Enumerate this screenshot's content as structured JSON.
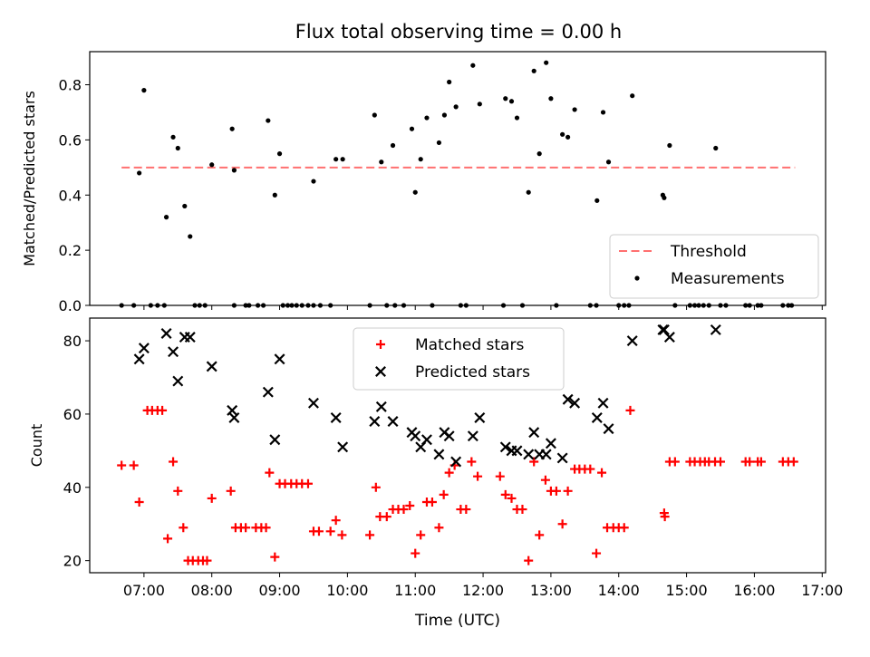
{
  "figure": {
    "title": "Flux total observing time = 0.00 h"
  },
  "chart_data": [
    {
      "type": "scatter",
      "panel": "top",
      "title": "Flux total observing time = 0.00 h",
      "xlabel": "",
      "ylabel": "Matched/Predicted stars",
      "x_unit": "hours UTC",
      "xlim": [
        6.2,
        17.05
      ],
      "ylim": [
        0.0,
        0.92
      ],
      "yticks": [
        0.0,
        0.2,
        0.4,
        0.6,
        0.8
      ],
      "ytick_labels": [
        "0.0",
        "0.2",
        "0.4",
        "0.6",
        "0.8"
      ],
      "grid": false,
      "legend": {
        "position": "lower-right",
        "entries": [
          "Threshold",
          "Measurements"
        ]
      },
      "threshold": {
        "name": "Threshold",
        "y": 0.5,
        "x_range": [
          6.67,
          16.6
        ],
        "color": "#ff7070",
        "style": "dashed"
      },
      "series": [
        {
          "name": "Measurements",
          "color": "#000000",
          "marker": "dot",
          "points": [
            [
              6.93,
              0.48
            ],
            [
              7.0,
              0.78
            ],
            [
              7.33,
              0.32
            ],
            [
              7.43,
              0.61
            ],
            [
              7.5,
              0.57
            ],
            [
              7.6,
              0.36
            ],
            [
              7.68,
              0.25
            ],
            [
              8.0,
              0.51
            ],
            [
              8.3,
              0.64
            ],
            [
              8.33,
              0.49
            ],
            [
              8.83,
              0.67
            ],
            [
              8.93,
              0.4
            ],
            [
              9.0,
              0.55
            ],
            [
              9.5,
              0.45
            ],
            [
              9.83,
              0.53
            ],
            [
              9.93,
              0.53
            ],
            [
              10.4,
              0.69
            ],
            [
              10.5,
              0.52
            ],
            [
              10.67,
              0.58
            ],
            [
              10.95,
              0.64
            ],
            [
              11.0,
              0.41
            ],
            [
              11.08,
              0.53
            ],
            [
              11.17,
              0.68
            ],
            [
              11.35,
              0.59
            ],
            [
              11.43,
              0.69
            ],
            [
              11.5,
              0.81
            ],
            [
              11.6,
              0.72
            ],
            [
              11.85,
              0.87
            ],
            [
              11.95,
              0.73
            ],
            [
              12.33,
              0.75
            ],
            [
              12.42,
              0.74
            ],
            [
              12.5,
              0.68
            ],
            [
              12.67,
              0.41
            ],
            [
              12.75,
              0.85
            ],
            [
              12.83,
              0.55
            ],
            [
              12.93,
              0.88
            ],
            [
              13.0,
              0.75
            ],
            [
              13.17,
              0.62
            ],
            [
              13.25,
              0.61
            ],
            [
              13.35,
              0.71
            ],
            [
              13.68,
              0.38
            ],
            [
              13.77,
              0.7
            ],
            [
              13.85,
              0.52
            ],
            [
              14.2,
              0.76
            ],
            [
              14.65,
              0.4
            ],
            [
              14.67,
              0.39
            ],
            [
              14.75,
              0.58
            ],
            [
              15.43,
              0.57
            ],
            [
              6.67,
              0.0
            ],
            [
              6.85,
              0.0
            ],
            [
              7.1,
              0.0
            ],
            [
              7.2,
              0.0
            ],
            [
              7.3,
              0.0
            ],
            [
              7.75,
              0.0
            ],
            [
              7.82,
              0.0
            ],
            [
              7.9,
              0.0
            ],
            [
              8.33,
              0.0
            ],
            [
              8.5,
              0.0
            ],
            [
              8.55,
              0.0
            ],
            [
              8.68,
              0.0
            ],
            [
              8.76,
              0.0
            ],
            [
              9.05,
              0.0
            ],
            [
              9.12,
              0.0
            ],
            [
              9.18,
              0.0
            ],
            [
              9.25,
              0.0
            ],
            [
              9.33,
              0.0
            ],
            [
              9.42,
              0.0
            ],
            [
              9.5,
              0.0
            ],
            [
              9.6,
              0.0
            ],
            [
              9.75,
              0.0
            ],
            [
              10.33,
              0.0
            ],
            [
              10.58,
              0.0
            ],
            [
              10.7,
              0.0
            ],
            [
              10.83,
              0.0
            ],
            [
              11.25,
              0.0
            ],
            [
              11.67,
              0.0
            ],
            [
              11.75,
              0.0
            ],
            [
              12.3,
              0.0
            ],
            [
              12.58,
              0.0
            ],
            [
              13.08,
              0.0
            ],
            [
              13.58,
              0.0
            ],
            [
              13.67,
              0.0
            ],
            [
              14.0,
              0.0
            ],
            [
              14.08,
              0.0
            ],
            [
              14.15,
              0.0
            ],
            [
              14.83,
              0.0
            ],
            [
              15.05,
              0.0
            ],
            [
              15.12,
              0.0
            ],
            [
              15.18,
              0.0
            ],
            [
              15.25,
              0.0
            ],
            [
              15.33,
              0.0
            ],
            [
              15.5,
              0.0
            ],
            [
              15.58,
              0.0
            ],
            [
              15.87,
              0.0
            ],
            [
              15.93,
              0.0
            ],
            [
              16.05,
              0.0
            ],
            [
              16.1,
              0.0
            ],
            [
              16.42,
              0.0
            ],
            [
              16.5,
              0.0
            ],
            [
              16.55,
              0.0
            ]
          ]
        }
      ]
    },
    {
      "type": "scatter",
      "panel": "bottom",
      "title": "",
      "xlabel": "Time (UTC)",
      "ylabel": "Count",
      "x_unit": "hours UTC",
      "xlim": [
        6.2,
        17.05
      ],
      "ylim": [
        16.7,
        86.2
      ],
      "xticks": [
        7,
        8,
        9,
        10,
        11,
        12,
        13,
        14,
        15,
        16,
        17
      ],
      "xtick_labels": [
        "07:00",
        "08:00",
        "09:00",
        "10:00",
        "11:00",
        "12:00",
        "13:00",
        "14:00",
        "15:00",
        "16:00",
        "17:00"
      ],
      "yticks": [
        20,
        40,
        60,
        80
      ],
      "ytick_labels": [
        "20",
        "40",
        "60",
        "80"
      ],
      "grid": false,
      "legend": {
        "position": "top-center",
        "entries": [
          "Matched stars",
          "Predicted stars"
        ]
      },
      "series": [
        {
          "name": "Matched stars",
          "color": "#ff0000",
          "marker": "plus",
          "points": [
            [
              6.67,
              46
            ],
            [
              6.85,
              46
            ],
            [
              6.93,
              36
            ],
            [
              7.05,
              61
            ],
            [
              7.12,
              61
            ],
            [
              7.2,
              61
            ],
            [
              7.27,
              61
            ],
            [
              7.35,
              26
            ],
            [
              7.43,
              47
            ],
            [
              7.5,
              39
            ],
            [
              7.58,
              29
            ],
            [
              7.65,
              20
            ],
            [
              7.72,
              20
            ],
            [
              7.8,
              20
            ],
            [
              7.87,
              20
            ],
            [
              7.93,
              20
            ],
            [
              8.0,
              37
            ],
            [
              8.28,
              39
            ],
            [
              8.35,
              29
            ],
            [
              8.43,
              29
            ],
            [
              8.5,
              29
            ],
            [
              8.65,
              29
            ],
            [
              8.73,
              29
            ],
            [
              8.8,
              29
            ],
            [
              8.85,
              44
            ],
            [
              8.93,
              21
            ],
            [
              9.0,
              41
            ],
            [
              9.08,
              41
            ],
            [
              9.17,
              41
            ],
            [
              9.25,
              41
            ],
            [
              9.33,
              41
            ],
            [
              9.42,
              41
            ],
            [
              9.5,
              28
            ],
            [
              9.58,
              28
            ],
            [
              9.75,
              28
            ],
            [
              9.83,
              31
            ],
            [
              9.92,
              27
            ],
            [
              10.33,
              27
            ],
            [
              10.42,
              40
            ],
            [
              10.48,
              32
            ],
            [
              10.58,
              32
            ],
            [
              10.67,
              34
            ],
            [
              10.75,
              34
            ],
            [
              10.83,
              34
            ],
            [
              10.92,
              35
            ],
            [
              11.0,
              22
            ],
            [
              11.08,
              27
            ],
            [
              11.17,
              36
            ],
            [
              11.25,
              36
            ],
            [
              11.35,
              29
            ],
            [
              11.42,
              38
            ],
            [
              11.5,
              44
            ],
            [
              11.58,
              46
            ],
            [
              11.67,
              34
            ],
            [
              11.75,
              34
            ],
            [
              11.83,
              47
            ],
            [
              11.92,
              43
            ],
            [
              12.25,
              43
            ],
            [
              12.33,
              38
            ],
            [
              12.42,
              37
            ],
            [
              12.5,
              34
            ],
            [
              12.58,
              34
            ],
            [
              12.67,
              20
            ],
            [
              12.75,
              47
            ],
            [
              12.83,
              27
            ],
            [
              12.92,
              42
            ],
            [
              13.0,
              39
            ],
            [
              13.08,
              39
            ],
            [
              13.17,
              30
            ],
            [
              13.25,
              39
            ],
            [
              13.35,
              45
            ],
            [
              13.42,
              45
            ],
            [
              13.5,
              45
            ],
            [
              13.58,
              45
            ],
            [
              13.67,
              22
            ],
            [
              13.75,
              44
            ],
            [
              13.83,
              29
            ],
            [
              13.92,
              29
            ],
            [
              14.0,
              29
            ],
            [
              14.08,
              29
            ],
            [
              14.17,
              61
            ],
            [
              14.67,
              33
            ],
            [
              14.68,
              32
            ],
            [
              14.75,
              47
            ],
            [
              14.83,
              47
            ],
            [
              15.05,
              47
            ],
            [
              15.12,
              47
            ],
            [
              15.2,
              47
            ],
            [
              15.27,
              47
            ],
            [
              15.33,
              47
            ],
            [
              15.42,
              47
            ],
            [
              15.5,
              47
            ],
            [
              15.87,
              47
            ],
            [
              15.93,
              47
            ],
            [
              16.05,
              47
            ],
            [
              16.1,
              47
            ],
            [
              16.42,
              47
            ],
            [
              16.5,
              47
            ],
            [
              16.58,
              47
            ]
          ]
        },
        {
          "name": "Predicted stars",
          "color": "#000000",
          "marker": "x",
          "points": [
            [
              6.93,
              75
            ],
            [
              7.0,
              78
            ],
            [
              7.33,
              82
            ],
            [
              7.43,
              77
            ],
            [
              7.5,
              69
            ],
            [
              7.6,
              81
            ],
            [
              7.68,
              81
            ],
            [
              8.0,
              73
            ],
            [
              8.3,
              61
            ],
            [
              8.33,
              59
            ],
            [
              8.83,
              66
            ],
            [
              8.93,
              53
            ],
            [
              9.0,
              75
            ],
            [
              9.5,
              63
            ],
            [
              9.83,
              59
            ],
            [
              9.93,
              51
            ],
            [
              10.4,
              58
            ],
            [
              10.5,
              62
            ],
            [
              10.67,
              58
            ],
            [
              10.95,
              55
            ],
            [
              11.0,
              54
            ],
            [
              11.08,
              51
            ],
            [
              11.17,
              53
            ],
            [
              11.35,
              49
            ],
            [
              11.43,
              55
            ],
            [
              11.5,
              54
            ],
            [
              11.6,
              47
            ],
            [
              11.85,
              54
            ],
            [
              11.95,
              59
            ],
            [
              12.33,
              51
            ],
            [
              12.42,
              50
            ],
            [
              12.5,
              50
            ],
            [
              12.67,
              49
            ],
            [
              12.75,
              55
            ],
            [
              12.83,
              49
            ],
            [
              12.93,
              49
            ],
            [
              13.0,
              52
            ],
            [
              13.17,
              48
            ],
            [
              13.25,
              64
            ],
            [
              13.35,
              63
            ],
            [
              13.68,
              59
            ],
            [
              13.77,
              63
            ],
            [
              13.85,
              56
            ],
            [
              14.2,
              80
            ],
            [
              14.65,
              83
            ],
            [
              14.67,
              83
            ],
            [
              14.75,
              81
            ],
            [
              15.43,
              83
            ]
          ]
        }
      ]
    }
  ]
}
